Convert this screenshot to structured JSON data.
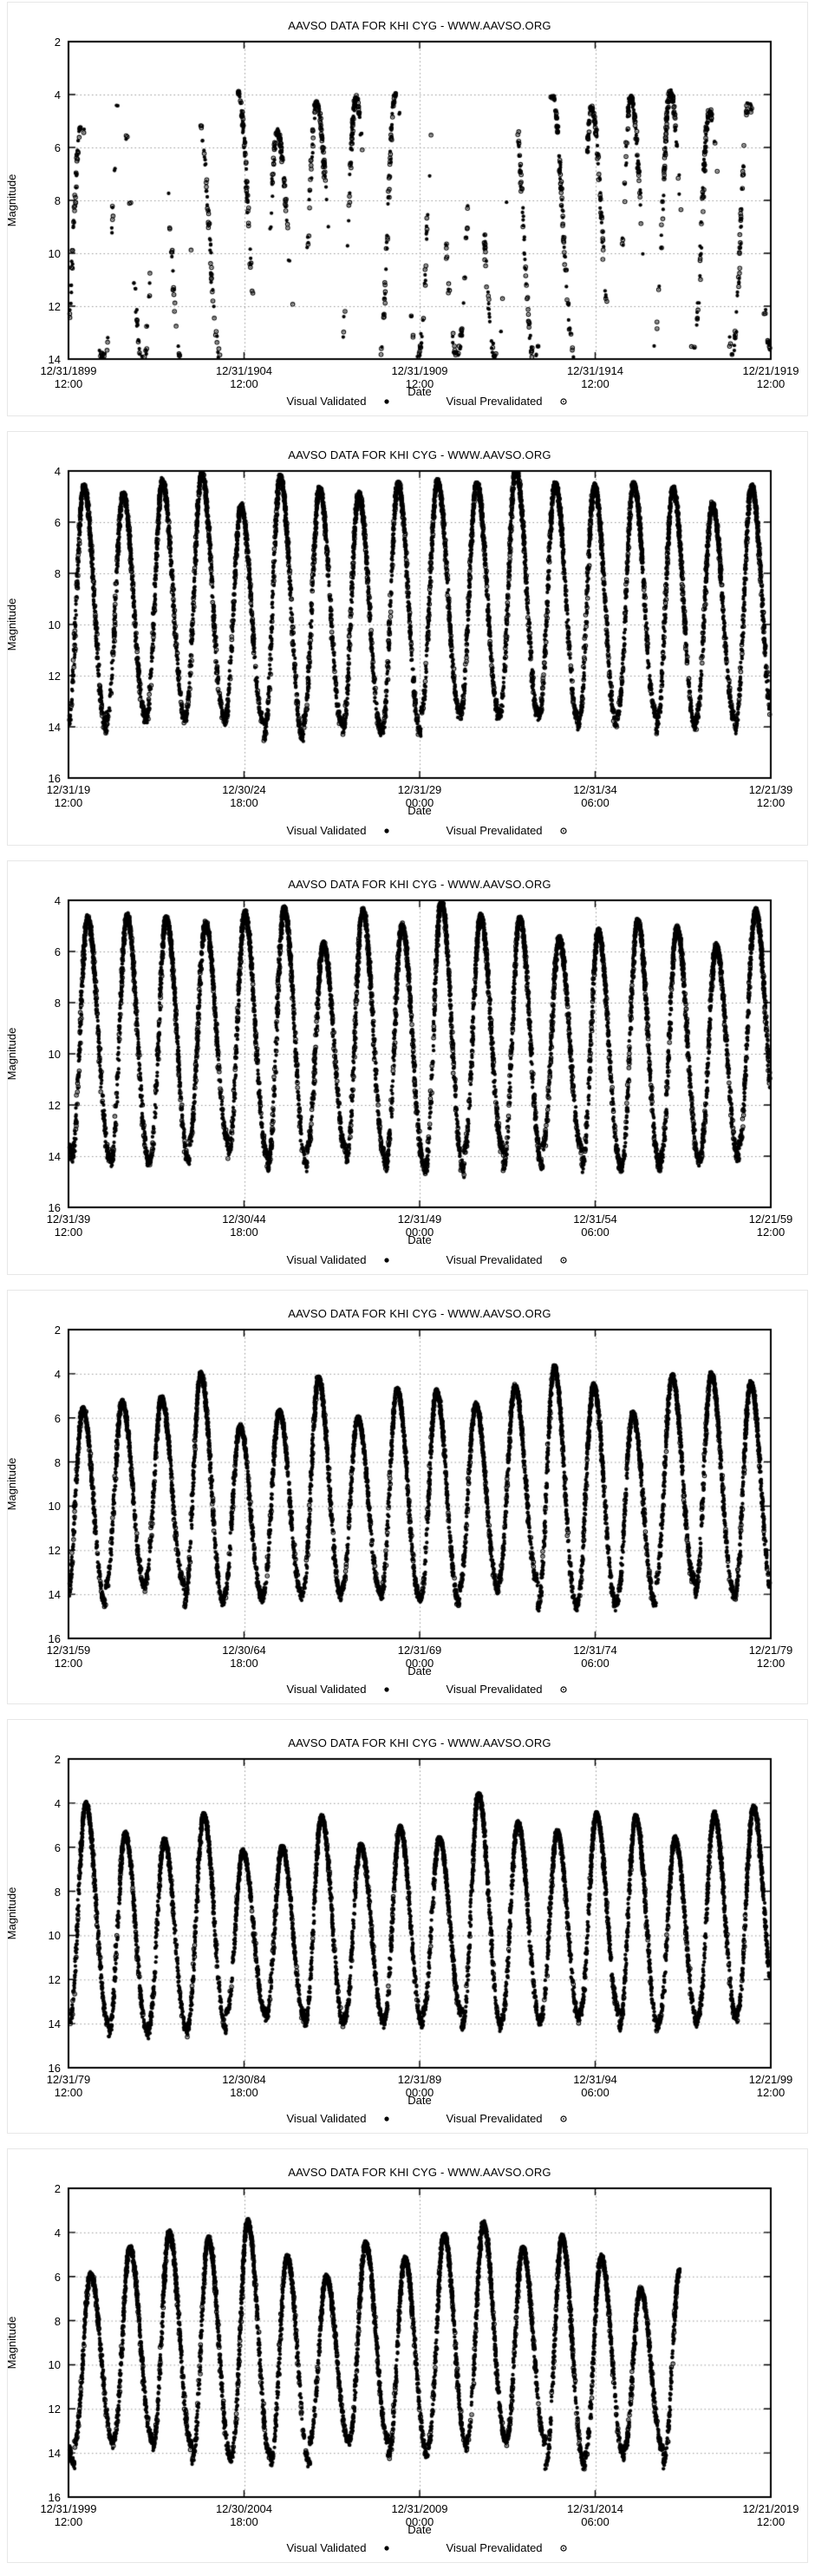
{
  "page": {
    "description": "Six stacked AAVSO light-curve plots for the Mira variable KHI CYG (Chi Cygni), visual magnitude vs date, 20-year spans from 1899 to 2019",
    "colors": {
      "background": "#ffffff",
      "points": "#000000",
      "grid": "#9a9a9a",
      "axis": "#000000",
      "frame": "#e7e7e7"
    }
  },
  "chart_data": [
    {
      "type": "scatter",
      "title": "AAVSO DATA FOR KHI CYG - WWW.AAVSO.ORG",
      "xlabel": "Date",
      "ylabel": "Magnitude",
      "x_range": {
        "start": "12/31/1899 12:00",
        "end": "12/21/1919 12:00",
        "span_days": 7295
      },
      "y_axis": {
        "top": 2,
        "bottom": 14,
        "reversed": true,
        "ticks": [
          2,
          4,
          6,
          8,
          10,
          12,
          14
        ]
      },
      "x_ticks": [
        {
          "date": "12/31/1899",
          "time": "12:00"
        },
        {
          "date": "12/31/1904",
          "time": "12:00"
        },
        {
          "date": "12/31/1909",
          "time": "12:00"
        },
        {
          "date": "12/31/1914",
          "time": "12:00"
        },
        {
          "date": "12/21/1919",
          "time": "12:00"
        }
      ],
      "grid": true,
      "legend": [
        {
          "label": "Visual Validated",
          "marker": "filled-circle"
        },
        {
          "label": "Visual Prevalidated",
          "marker": "open-circle-dot"
        }
      ],
      "series_model": {
        "note": "values estimated from plotted pixels; sparse patchy coverage with seasonal gaps",
        "period_days": 408,
        "first_max_day": 130,
        "peak_mags_per_cycle": [
          5.2,
          3.5,
          4.1,
          4.9,
          3.9,
          5.4,
          4.3,
          4.1,
          4.0,
          4.7,
          5.3,
          4.2,
          4.0,
          4.5,
          4.1,
          3.9,
          4.6,
          4.2
        ],
        "min_mag_range": [
          13.4,
          14.6
        ],
        "coverage_density": 0.3,
        "seasonal_gaps": true,
        "open_marker_fraction": 0.5,
        "data_start_fraction": 0.0,
        "data_end_fraction": 1.0,
        "seed": 11
      }
    },
    {
      "type": "scatter",
      "title": "AAVSO DATA FOR KHI CYG - WWW.AAVSO.ORG",
      "xlabel": "Date",
      "ylabel": "Magnitude",
      "x_range": {
        "start": "12/31/19 12:00",
        "end": "12/21/39 12:00",
        "span_days": 7295
      },
      "y_axis": {
        "top": 4,
        "bottom": 16,
        "reversed": true,
        "ticks": [
          4,
          6,
          8,
          10,
          12,
          14,
          16
        ]
      },
      "x_ticks": [
        {
          "date": "12/31/19",
          "time": "12:00"
        },
        {
          "date": "12/30/24",
          "time": "18:00"
        },
        {
          "date": "12/31/29",
          "time": "00:00"
        },
        {
          "date": "12/31/34",
          "time": "06:00"
        },
        {
          "date": "12/21/39",
          "time": "12:00"
        }
      ],
      "grid": true,
      "legend": [
        {
          "label": "Visual Validated",
          "marker": "filled-circle"
        },
        {
          "label": "Visual Prevalidated",
          "marker": "open-circle-dot"
        }
      ],
      "series_model": {
        "note": "dense continuous coverage, ~18 cycles",
        "period_days": 408,
        "first_max_day": 160,
        "peak_mags_per_cycle": [
          4.6,
          4.9,
          4.4,
          4.1,
          5.4,
          4.2,
          4.7,
          4.9,
          4.5,
          4.4,
          4.5,
          3.9,
          4.5,
          4.6,
          4.5,
          4.7,
          5.3,
          4.6
        ],
        "min_mag_range": [
          13.4,
          14.5
        ],
        "coverage_density": 0.92,
        "seasonal_gaps": false,
        "open_marker_fraction": 0.28,
        "data_start_fraction": 0.0,
        "data_end_fraction": 1.0,
        "seed": 22
      }
    },
    {
      "type": "scatter",
      "title": "AAVSO DATA FOR KHI CYG - WWW.AAVSO.ORG",
      "xlabel": "Date",
      "ylabel": "Magnitude",
      "x_range": {
        "start": "12/31/39 12:00",
        "end": "12/21/59 12:00",
        "span_days": 7295
      },
      "y_axis": {
        "top": 4,
        "bottom": 16,
        "reversed": true,
        "ticks": [
          4,
          6,
          8,
          10,
          12,
          14,
          16
        ]
      },
      "x_ticks": [
        {
          "date": "12/31/39",
          "time": "12:00"
        },
        {
          "date": "12/30/44",
          "time": "18:00"
        },
        {
          "date": "12/31/49",
          "time": "00:00"
        },
        {
          "date": "12/31/54",
          "time": "06:00"
        },
        {
          "date": "12/21/59",
          "time": "12:00"
        }
      ],
      "grid": true,
      "legend": [
        {
          "label": "Visual Validated",
          "marker": "filled-circle"
        },
        {
          "label": "Visual Prevalidated",
          "marker": "open-circle-dot"
        }
      ],
      "series_model": {
        "note": "dense coverage, maxima varying ~4.0-5.8 mag",
        "period_days": 408,
        "first_max_day": 200,
        "peak_mags_per_cycle": [
          4.7,
          4.6,
          4.7,
          4.9,
          4.5,
          4.3,
          5.7,
          4.4,
          5.0,
          4.0,
          4.6,
          4.7,
          5.5,
          5.2,
          4.8,
          5.1,
          5.8,
          4.4
        ],
        "min_mag_range": [
          13.4,
          14.6
        ],
        "coverage_density": 0.92,
        "seasonal_gaps": false,
        "open_marker_fraction": 0.28,
        "data_start_fraction": 0.0,
        "data_end_fraction": 1.0,
        "seed": 33
      }
    },
    {
      "type": "scatter",
      "title": "AAVSO DATA FOR KHI CYG - WWW.AAVSO.ORG",
      "xlabel": "Date",
      "ylabel": "Magnitude",
      "x_range": {
        "start": "12/31/59 12:00",
        "end": "12/21/79 12:00",
        "span_days": 7295
      },
      "y_axis": {
        "top": 2,
        "bottom": 16,
        "reversed": true,
        "ticks": [
          2,
          4,
          6,
          8,
          10,
          12,
          14,
          16
        ]
      },
      "x_ticks": [
        {
          "date": "12/31/59",
          "time": "12:00"
        },
        {
          "date": "12/30/64",
          "time": "18:00"
        },
        {
          "date": "12/31/69",
          "time": "00:00"
        },
        {
          "date": "12/31/74",
          "time": "06:00"
        },
        {
          "date": "12/21/79",
          "time": "12:00"
        }
      ],
      "grid": true,
      "legend": [
        {
          "label": "Visual Validated",
          "marker": "filled-circle"
        },
        {
          "label": "Visual Prevalidated",
          "marker": "open-circle-dot"
        }
      ],
      "series_model": {
        "note": "dense coverage, strongly varying maxima ~3.7-6.4 mag",
        "period_days": 408,
        "first_max_day": 150,
        "peak_mags_per_cycle": [
          5.6,
          5.3,
          5.1,
          4.0,
          6.4,
          5.7,
          4.2,
          6.0,
          4.7,
          4.8,
          5.4,
          4.6,
          3.7,
          4.5,
          5.8,
          4.1,
          4.0,
          4.4
        ],
        "min_mag_range": [
          13.4,
          14.6
        ],
        "coverage_density": 0.92,
        "seasonal_gaps": false,
        "open_marker_fraction": 0.15,
        "data_start_fraction": 0.0,
        "data_end_fraction": 1.0,
        "seed": 44
      }
    },
    {
      "type": "scatter",
      "title": "AAVSO DATA FOR KHI CYG - WWW.AAVSO.ORG",
      "xlabel": "Date",
      "ylabel": "Magnitude",
      "x_range": {
        "start": "12/31/79 12:00",
        "end": "12/21/99 12:00",
        "span_days": 7295
      },
      "y_axis": {
        "top": 2,
        "bottom": 16,
        "reversed": true,
        "ticks": [
          2,
          4,
          6,
          8,
          10,
          12,
          14,
          16
        ]
      },
      "x_ticks": [
        {
          "date": "12/31/79",
          "time": "12:00"
        },
        {
          "date": "12/30/84",
          "time": "18:00"
        },
        {
          "date": "12/31/89",
          "time": "00:00"
        },
        {
          "date": "12/31/94",
          "time": "06:00"
        },
        {
          "date": "12/21/99",
          "time": "12:00"
        }
      ],
      "grid": true,
      "legend": [
        {
          "label": "Visual Validated",
          "marker": "filled-circle"
        },
        {
          "label": "Visual Prevalidated",
          "marker": "open-circle-dot"
        }
      ],
      "series_model": {
        "note": "dense coverage, maxima ~3.6-6.2 mag",
        "period_days": 408,
        "first_max_day": 180,
        "peak_mags_per_cycle": [
          4.0,
          5.4,
          5.7,
          4.5,
          6.2,
          6.0,
          4.6,
          5.9,
          5.1,
          5.6,
          3.6,
          4.9,
          5.3,
          4.5,
          4.6,
          5.6,
          4.5,
          4.2
        ],
        "min_mag_range": [
          13.4,
          14.6
        ],
        "coverage_density": 0.92,
        "seasonal_gaps": false,
        "open_marker_fraction": 0.1,
        "data_start_fraction": 0.0,
        "data_end_fraction": 1.0,
        "seed": 55
      }
    },
    {
      "type": "scatter",
      "title": "AAVSO DATA FOR KHI CYG - WWW.AAVSO.ORG",
      "xlabel": "Date",
      "ylabel": "Magnitude",
      "x_range": {
        "start": "12/31/1999 12:00",
        "end": "12/21/2019 12:00",
        "span_days": 7295
      },
      "y_axis": {
        "top": 2,
        "bottom": 16,
        "reversed": true,
        "ticks": [
          2,
          4,
          6,
          8,
          10,
          12,
          14,
          16
        ]
      },
      "x_ticks": [
        {
          "date": "12/31/1999",
          "time": "12:00"
        },
        {
          "date": "12/30/2004",
          "time": "18:00"
        },
        {
          "date": "12/31/2009",
          "time": "00:00"
        },
        {
          "date": "12/31/2014",
          "time": "06:00"
        },
        {
          "date": "12/21/2019",
          "time": "12:00"
        }
      ],
      "grid": true,
      "legend": [
        {
          "label": "Visual Validated",
          "marker": "filled-circle"
        },
        {
          "label": "Visual Prevalidated",
          "marker": "open-circle-dot"
        }
      ],
      "series_model": {
        "note": "dense coverage; observations stop about 87% across the span (~2017), ending mid-rise",
        "period_days": 408,
        "first_max_day": 230,
        "peak_mags_per_cycle": [
          5.9,
          4.7,
          4.0,
          4.3,
          3.5,
          5.1,
          6.0,
          4.5,
          5.2,
          4.1,
          3.6,
          4.7,
          4.2,
          5.1,
          6.6,
          5.7,
          4.8,
          4.5
        ],
        "min_mag_range": [
          13.4,
          14.6
        ],
        "coverage_density": 0.92,
        "seasonal_gaps": false,
        "open_marker_fraction": 0.15,
        "data_start_fraction": 0.0,
        "data_end_fraction": 0.87,
        "seed": 66
      }
    }
  ]
}
